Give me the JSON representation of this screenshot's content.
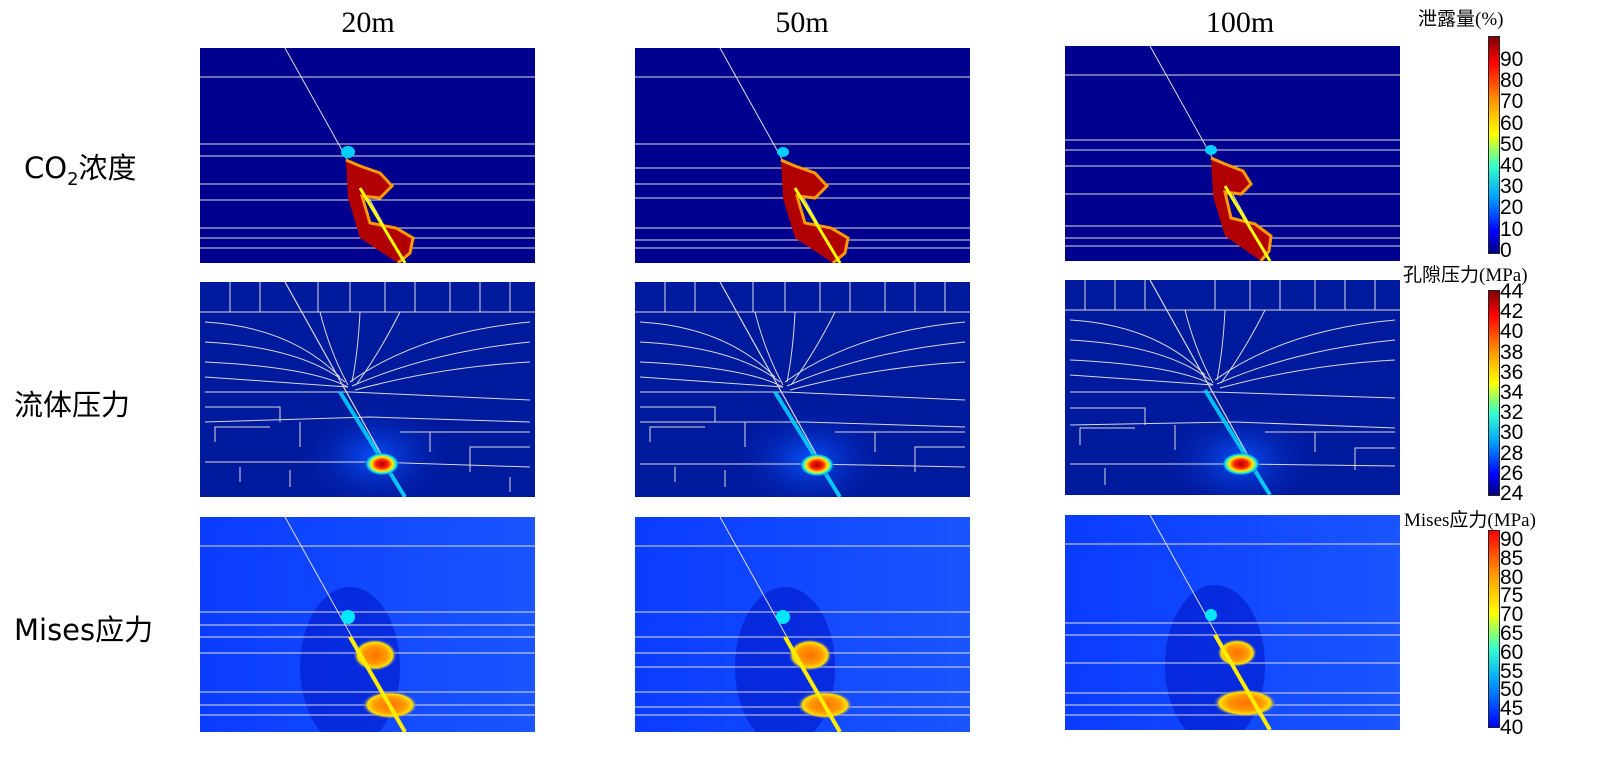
{
  "columns": [
    "20m",
    "50m",
    "100m"
  ],
  "rows": [
    {
      "label_main": "CO",
      "label_sub": "2",
      "label_tail": "浓度"
    },
    {
      "label_main": "流体压力",
      "label_sub": "",
      "label_tail": ""
    },
    {
      "label_main": "Mises应力",
      "label_sub": "",
      "label_tail": ""
    }
  ],
  "colorbars": [
    {
      "title": "泄露量(%)",
      "ticks": [
        "90",
        "80",
        "70",
        "60",
        "50",
        "40",
        "30",
        "20",
        "10",
        "0"
      ]
    },
    {
      "title": "孔隙压力(MPa)",
      "ticks": [
        "44",
        "42",
        "40",
        "38",
        "36",
        "34",
        "32",
        "30",
        "28",
        "26",
        "24"
      ]
    },
    {
      "title": "Mises应力(MPa)",
      "ticks": [
        "90",
        "85",
        "80",
        "75",
        "70",
        "65",
        "60",
        "55",
        "50",
        "45",
        "40"
      ]
    }
  ],
  "colors": {
    "background_co2": "#00008f",
    "background_pressure": "#001a9e",
    "background_mises": "#0a3cff",
    "high": "#b00000",
    "mid": "#ffff00",
    "line": "#dcdcdc"
  }
}
